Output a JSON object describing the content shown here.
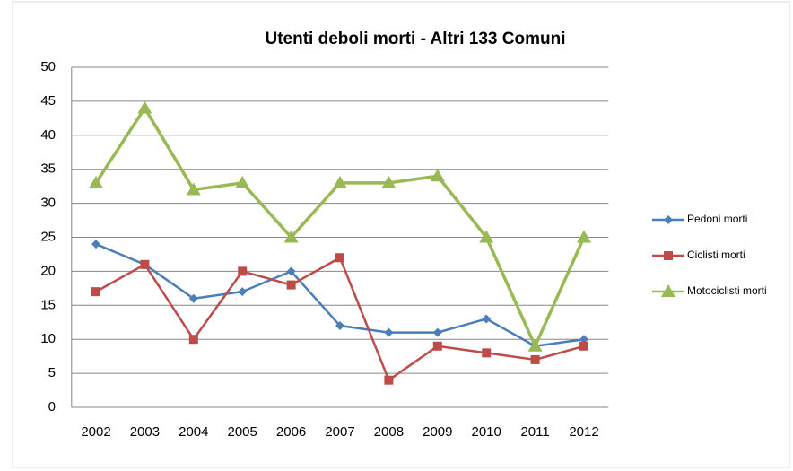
{
  "chart_data": {
    "type": "line",
    "title": "Utenti deboli morti - Altri 133 Comuni",
    "categories": [
      "2002",
      "2003",
      "2004",
      "2005",
      "2006",
      "2007",
      "2008",
      "2009",
      "2010",
      "2011",
      "2012"
    ],
    "series": [
      {
        "name": "Pedoni morti",
        "color": "#4a7ebb",
        "marker": "diamond",
        "values": [
          24,
          21,
          16,
          17,
          20,
          12,
          11,
          11,
          13,
          9,
          10
        ]
      },
      {
        "name": "Ciclisti morti",
        "color": "#be4b48",
        "marker": "square",
        "values": [
          17,
          21,
          10,
          20,
          18,
          22,
          4,
          9,
          8,
          7,
          9
        ]
      },
      {
        "name": "Motociclisti morti",
        "color": "#98b954",
        "marker": "triangle",
        "values": [
          33,
          44,
          32,
          33,
          25,
          33,
          33,
          34,
          25,
          9,
          25
        ]
      }
    ],
    "ylim": [
      0,
      50
    ],
    "yticks": [
      0,
      5,
      10,
      15,
      20,
      25,
      30,
      35,
      40,
      45,
      50
    ],
    "grid": true,
    "legend": "right"
  }
}
